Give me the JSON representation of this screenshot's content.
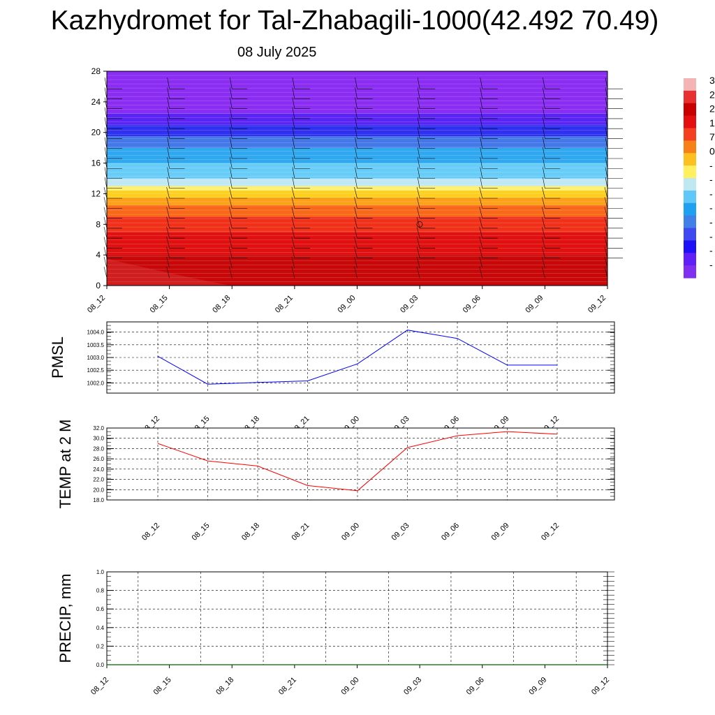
{
  "title": "Kazhydromet for Tal-Zhabagili-1000(42.492 70.49)",
  "date": "08 July 2025",
  "colors": {
    "pmsl": "#0000ff",
    "temp": "#ff0000",
    "precip": "#006400",
    "grid": "#000000"
  },
  "colorbar": {
    "labels": [
      "3",
      "2",
      "2",
      "1",
      "7",
      "0",
      "-",
      "-",
      "-",
      "-",
      "-",
      "-",
      "-",
      "-"
    ],
    "colors": [
      "#f4b4b4",
      "#e83030",
      "#c80000",
      "#e41010",
      "#f44020",
      "#f88018",
      "#fcc020",
      "#fff060",
      "#c0e8f0",
      "#60c8f8",
      "#20a0f0",
      "#4080e8",
      "#4048f0",
      "#2010f8",
      "#6020f8",
      "#8030f0"
    ]
  },
  "chart_data": [
    {
      "type": "heatmap",
      "name": "cross-section",
      "x_ticks": [
        "08_12",
        "08_15",
        "08_18",
        "08_21",
        "09_00",
        "09_03",
        "09_06",
        "09_09",
        "09_12"
      ],
      "y_ticks": [
        "0",
        "4",
        "8",
        "12",
        "16",
        "20",
        "24",
        "28"
      ],
      "ylim": [
        0,
        28
      ],
      "bands": [
        {
          "from": 0,
          "to": 4,
          "color": "#c80808"
        },
        {
          "from": 4,
          "to": 7,
          "color": "#e01010"
        },
        {
          "from": 7,
          "to": 9,
          "color": "#f03018"
        },
        {
          "from": 9,
          "to": 10.5,
          "color": "#f86818"
        },
        {
          "from": 10.5,
          "to": 11.5,
          "color": "#fca018"
        },
        {
          "from": 11.5,
          "to": 12.4,
          "color": "#fdd020"
        },
        {
          "from": 12.4,
          "to": 13,
          "color": "#fff070"
        },
        {
          "from": 13,
          "to": 14,
          "color": "#c0e8f4"
        },
        {
          "from": 14,
          "to": 16,
          "color": "#68ccf8"
        },
        {
          "from": 16,
          "to": 18,
          "color": "#30a8f0"
        },
        {
          "from": 18,
          "to": 19.5,
          "color": "#4478e8"
        },
        {
          "from": 19.5,
          "to": 21,
          "color": "#3030f0"
        },
        {
          "from": 21,
          "to": 22.5,
          "color": "#5a24f4"
        },
        {
          "from": 22.5,
          "to": 28,
          "color": "#8a2cf2"
        }
      ]
    },
    {
      "type": "line",
      "name": "pmsl",
      "ylabel": "PMSL",
      "x": [
        "08_12",
        "08_15",
        "08_18",
        "08_21",
        "09_00",
        "09_03",
        "09_06",
        "09_09",
        "09_12"
      ],
      "values": [
        1003.05,
        1001.95,
        1002.02,
        1002.08,
        1002.75,
        1004.08,
        1003.75,
        1002.7,
        1002.7
      ],
      "ylim": [
        1001.6,
        1004.4
      ],
      "y_ticks": [
        "1002.0",
        "1002.5",
        "1003.0",
        "1003.5",
        "1004.0"
      ],
      "y_tick_values": [
        1002.0,
        1002.5,
        1003.0,
        1003.5,
        1004.0
      ]
    },
    {
      "type": "line",
      "name": "temp",
      "ylabel": "TEMP at 2 M",
      "x": [
        "08_12",
        "08_15",
        "08_18",
        "08_21",
        "09_00",
        "09_03",
        "09_06",
        "09_09",
        "09_12"
      ],
      "values": [
        29.0,
        25.6,
        24.6,
        20.8,
        19.8,
        28.2,
        30.5,
        31.3,
        30.8
      ],
      "ylim": [
        18.0,
        32.0
      ],
      "y_ticks": [
        "18.0",
        "20.0",
        "22.0",
        "24.0",
        "26.0",
        "28.0",
        "30.0",
        "32.0"
      ],
      "y_tick_values": [
        18,
        20,
        22,
        24,
        26,
        28,
        30,
        32
      ]
    },
    {
      "type": "line",
      "name": "precip",
      "ylabel": "PRECIP, mm",
      "x": [
        "08_12",
        "08_15",
        "08_18",
        "08_21",
        "09_00",
        "09_03",
        "09_06",
        "09_09",
        "09_12"
      ],
      "values": [
        0,
        0,
        0,
        0,
        0,
        0,
        0,
        0,
        0
      ],
      "ylim": [
        0.0,
        1.0
      ],
      "y_ticks": [
        "0.0",
        "0.2",
        "0.4",
        "0.6",
        "0.8",
        "1.0"
      ],
      "y_tick_values": [
        0.0,
        0.2,
        0.4,
        0.6,
        0.8,
        1.0
      ],
      "x_ticks": [
        "08_12",
        "08_15",
        "08_18",
        "08_21",
        "09_00",
        "09_03",
        "09_06",
        "09_09",
        "09_12"
      ]
    }
  ]
}
